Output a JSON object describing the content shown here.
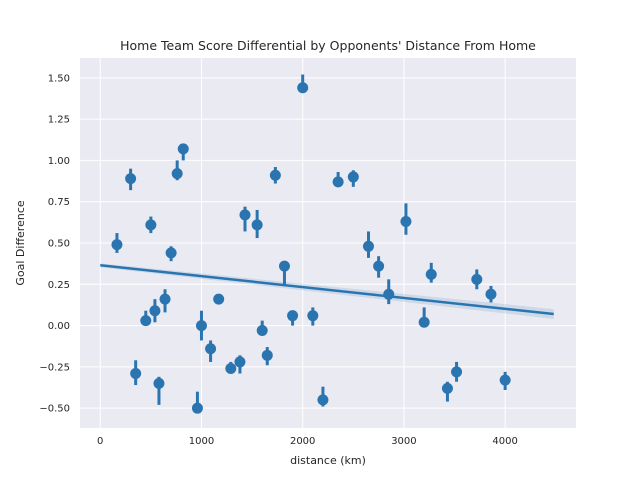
{
  "chart_data": {
    "type": "scatter",
    "title": "Home Team Score Differential by Opponents' Distance From Home",
    "xlabel": "distance (km)",
    "ylabel": "Goal Difference",
    "xlim": [
      -200,
      4700
    ],
    "ylim": [
      -0.62,
      1.62
    ],
    "xticks": [
      0,
      1000,
      2000,
      3000,
      4000
    ],
    "yticks": [
      -0.5,
      -0.25,
      0.0,
      0.25,
      0.5,
      0.75,
      1.0,
      1.25,
      1.5
    ],
    "xtick_labels": [
      "0",
      "1000",
      "2000",
      "3000",
      "4000"
    ],
    "ytick_labels": [
      "−0.50",
      "−0.25",
      "0.00",
      "0.25",
      "0.50",
      "0.75",
      "1.00",
      "1.25",
      "1.50"
    ],
    "grid": true,
    "background_color": "#eaeaf2",
    "series_color": "#2a75b0",
    "points": [
      {
        "x": 165,
        "y": 0.49,
        "lo": 0.44,
        "hi": 0.56
      },
      {
        "x": 300,
        "y": 0.89,
        "lo": 0.82,
        "hi": 0.95
      },
      {
        "x": 350,
        "y": -0.29,
        "lo": -0.36,
        "hi": -0.21
      },
      {
        "x": 450,
        "y": 0.03,
        "lo": 0.01,
        "hi": 0.09
      },
      {
        "x": 500,
        "y": 0.61,
        "lo": 0.56,
        "hi": 0.66
      },
      {
        "x": 540,
        "y": 0.09,
        "lo": 0.02,
        "hi": 0.16
      },
      {
        "x": 580,
        "y": -0.35,
        "lo": -0.48,
        "hi": -0.31
      },
      {
        "x": 640,
        "y": 0.16,
        "lo": 0.08,
        "hi": 0.22
      },
      {
        "x": 700,
        "y": 0.44,
        "lo": 0.39,
        "hi": 0.48
      },
      {
        "x": 760,
        "y": 0.92,
        "lo": 0.88,
        "hi": 1.0
      },
      {
        "x": 820,
        "y": 1.07,
        "lo": 1.0,
        "hi": 1.1
      },
      {
        "x": 960,
        "y": -0.5,
        "lo": -0.5,
        "hi": -0.4
      },
      {
        "x": 1000,
        "y": 0.0,
        "lo": -0.09,
        "hi": 0.09
      },
      {
        "x": 1090,
        "y": -0.14,
        "lo": -0.22,
        "hi": -0.09
      },
      {
        "x": 1170,
        "y": 0.16,
        "lo": 0.13,
        "hi": 0.19
      },
      {
        "x": 1290,
        "y": -0.26,
        "lo": -0.29,
        "hi": -0.22
      },
      {
        "x": 1380,
        "y": -0.22,
        "lo": -0.29,
        "hi": -0.18
      },
      {
        "x": 1430,
        "y": 0.67,
        "lo": 0.57,
        "hi": 0.72
      },
      {
        "x": 1550,
        "y": 0.61,
        "lo": 0.53,
        "hi": 0.7
      },
      {
        "x": 1600,
        "y": -0.03,
        "lo": -0.06,
        "hi": 0.03
      },
      {
        "x": 1650,
        "y": -0.18,
        "lo": -0.24,
        "hi": -0.13
      },
      {
        "x": 1730,
        "y": 0.91,
        "lo": 0.86,
        "hi": 0.96
      },
      {
        "x": 1820,
        "y": 0.36,
        "lo": 0.25,
        "hi": 0.39
      },
      {
        "x": 1900,
        "y": 0.06,
        "lo": 0.0,
        "hi": 0.08
      },
      {
        "x": 2000,
        "y": 1.44,
        "lo": 1.42,
        "hi": 1.52
      },
      {
        "x": 2100,
        "y": 0.06,
        "lo": 0.0,
        "hi": 0.11
      },
      {
        "x": 2200,
        "y": -0.45,
        "lo": -0.49,
        "hi": -0.37
      },
      {
        "x": 2350,
        "y": 0.87,
        "lo": 0.84,
        "hi": 0.93
      },
      {
        "x": 2500,
        "y": 0.9,
        "lo": 0.84,
        "hi": 0.94
      },
      {
        "x": 2650,
        "y": 0.48,
        "lo": 0.41,
        "hi": 0.57
      },
      {
        "x": 2750,
        "y": 0.36,
        "lo": 0.29,
        "hi": 0.42
      },
      {
        "x": 2850,
        "y": 0.19,
        "lo": 0.13,
        "hi": 0.28
      },
      {
        "x": 3020,
        "y": 0.63,
        "lo": 0.55,
        "hi": 0.74
      },
      {
        "x": 3200,
        "y": 0.02,
        "lo": 0.0,
        "hi": 0.11
      },
      {
        "x": 3270,
        "y": 0.31,
        "lo": 0.26,
        "hi": 0.38
      },
      {
        "x": 3430,
        "y": -0.38,
        "lo": -0.46,
        "hi": -0.34
      },
      {
        "x": 3520,
        "y": -0.28,
        "lo": -0.34,
        "hi": -0.22
      },
      {
        "x": 3720,
        "y": 0.28,
        "lo": 0.22,
        "hi": 0.34
      },
      {
        "x": 3860,
        "y": 0.19,
        "lo": 0.14,
        "hi": 0.24
      },
      {
        "x": 4000,
        "y": -0.33,
        "lo": -0.39,
        "hi": -0.28
      }
    ],
    "regression": {
      "x": [
        0,
        4480
      ],
      "y": [
        0.365,
        0.07
      ]
    }
  }
}
